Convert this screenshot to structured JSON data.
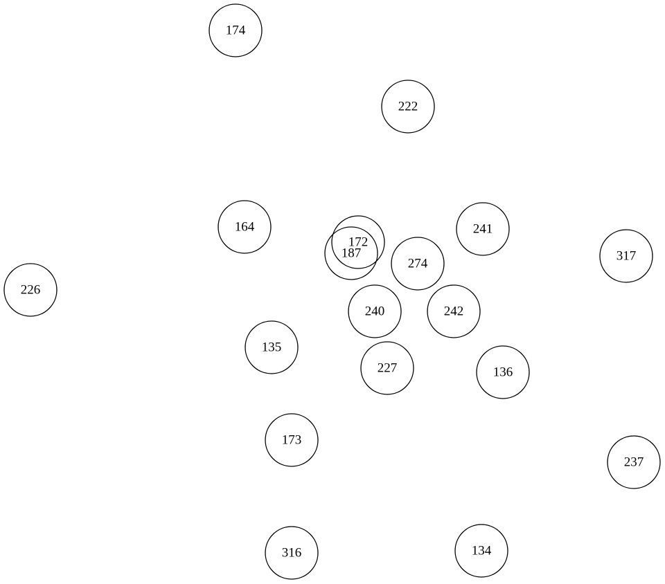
{
  "graph": {
    "nodes": [
      {
        "id": "n174",
        "label": "174"
      },
      {
        "id": "n222",
        "label": "222"
      },
      {
        "id": "n164",
        "label": "164"
      },
      {
        "id": "n172",
        "label": "172"
      },
      {
        "id": "n187",
        "label": "187"
      },
      {
        "id": "n241",
        "label": "241"
      },
      {
        "id": "n274",
        "label": "274"
      },
      {
        "id": "n317",
        "label": "317"
      },
      {
        "id": "n226",
        "label": "226"
      },
      {
        "id": "n240",
        "label": "240"
      },
      {
        "id": "n242",
        "label": "242"
      },
      {
        "id": "n135",
        "label": "135"
      },
      {
        "id": "n227",
        "label": "227"
      },
      {
        "id": "n136",
        "label": "136"
      },
      {
        "id": "n173",
        "label": "173"
      },
      {
        "id": "n237",
        "label": "237"
      },
      {
        "id": "n316",
        "label": "316"
      },
      {
        "id": "n134",
        "label": "134"
      }
    ]
  }
}
